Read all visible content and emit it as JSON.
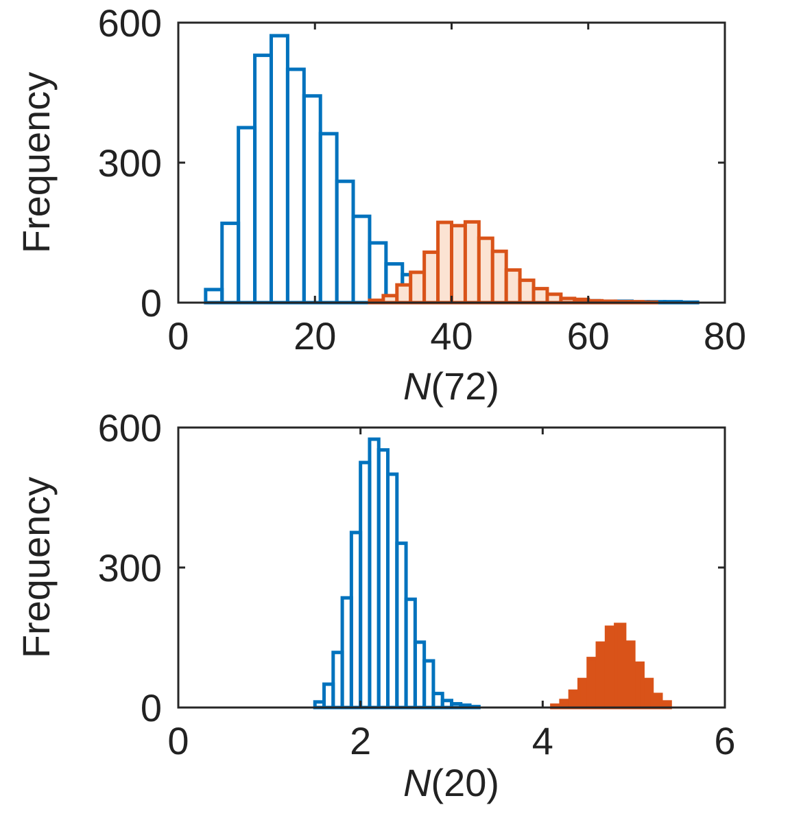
{
  "chart_data": [
    {
      "type": "histogram",
      "xlabel_var": "N",
      "xlabel_arg": "(72)",
      "ylabel": "Frequency",
      "xlim": [
        0,
        80
      ],
      "ylim": [
        0,
        600
      ],
      "xticks": [
        0,
        20,
        40,
        60,
        80
      ],
      "yticks": [
        0,
        300,
        600
      ],
      "grid": false,
      "series": [
        {
          "name": "blue",
          "color": "#0072BD",
          "fill": "none",
          "bin_edges": [
            4,
            6.4,
            8.8,
            11.2,
            13.6,
            16,
            18.4,
            20.8,
            23.2,
            25.6,
            28,
            30.4,
            32.8,
            35.2,
            37.6,
            40,
            42.4,
            44.8,
            47.2,
            49.6,
            52,
            54.4,
            56.8,
            59.2,
            61.6,
            64,
            66.4,
            68.8,
            71.2,
            73.6,
            76
          ],
          "counts": [
            28,
            170,
            375,
            530,
            572,
            500,
            443,
            362,
            260,
            185,
            128,
            83,
            60,
            55,
            38,
            25,
            20,
            15,
            12,
            10,
            8,
            6,
            5,
            4,
            3,
            3,
            2,
            2,
            2,
            1
          ]
        },
        {
          "name": "orange",
          "color": "#D95319",
          "fill": "#FBE3D3",
          "bin_edges": [
            28,
            30,
            32,
            34,
            36,
            38,
            40,
            42,
            44,
            46,
            48,
            50,
            52,
            54,
            56,
            58,
            60,
            62,
            64,
            66,
            68,
            70
          ],
          "counts": [
            5,
            15,
            38,
            65,
            108,
            172,
            165,
            173,
            138,
            110,
            70,
            48,
            30,
            18,
            9,
            7,
            4,
            3,
            2,
            2,
            1
          ]
        }
      ]
    },
    {
      "type": "histogram",
      "xlabel_var": "N",
      "xlabel_arg": "(20)",
      "ylabel": "Frequency",
      "xlim": [
        0,
        6
      ],
      "ylim": [
        0,
        600
      ],
      "xticks": [
        0,
        2,
        4,
        6
      ],
      "yticks": [
        0,
        300,
        600
      ],
      "grid": false,
      "series": [
        {
          "name": "blue",
          "color": "#0072BD",
          "fill": "none",
          "bin_edges": [
            1.5,
            1.6,
            1.7,
            1.8,
            1.9,
            2.0,
            2.1,
            2.2,
            2.3,
            2.4,
            2.5,
            2.6,
            2.7,
            2.8,
            2.9,
            3.0,
            3.1,
            3.2,
            3.3
          ],
          "counts": [
            12,
            50,
            118,
            235,
            375,
            525,
            575,
            552,
            500,
            352,
            232,
            140,
            100,
            30,
            15,
            8,
            5,
            2
          ]
        },
        {
          "name": "orange",
          "color": "#D95319",
          "fill": "#D95319",
          "bin_edges": [
            4.1,
            4.2,
            4.3,
            4.4,
            4.5,
            4.6,
            4.7,
            4.8,
            4.9,
            5.0,
            5.1,
            5.2,
            5.3,
            5.4
          ],
          "counts": [
            5,
            15,
            35,
            60,
            105,
            138,
            172,
            178,
            140,
            95,
            60,
            28,
            12
          ]
        }
      ]
    }
  ]
}
